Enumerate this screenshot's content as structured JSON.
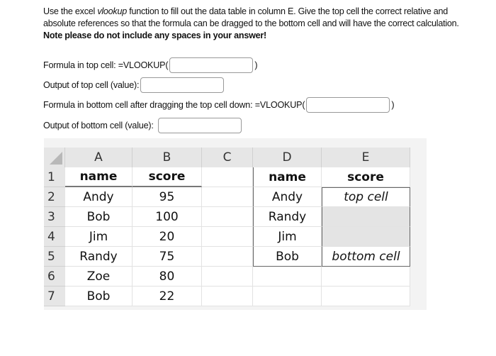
{
  "instructions": {
    "line1_a": "Use the excel ",
    "line1_em": "vlookup",
    "line1_b": " function to fill out the data table in column E. Give the top cell the correct relative and",
    "line2": "absolute references so that the formula can be dragged to the bottom cell and will have the correct calculation.",
    "note": "Note please do not include any spaces in your answer!"
  },
  "questions": [
    {
      "label": "Formula in top cell: =VLOOKUP(",
      "suffix": ")",
      "value": ""
    },
    {
      "label": "Output of top cell (value):",
      "suffix": "",
      "value": ""
    },
    {
      "label": "Formula in bottom cell after dragging the top cell down: =VLOOKUP(",
      "suffix": ")",
      "value": ""
    },
    {
      "label": "Output of bottom cell (value):",
      "suffix": "",
      "value": ""
    }
  ],
  "sheet": {
    "columns": [
      "A",
      "B",
      "C",
      "D",
      "E"
    ],
    "rows": [
      "1",
      "2",
      "3",
      "4",
      "5",
      "6",
      "7"
    ],
    "cells": [
      [
        "name",
        "score",
        "",
        "name",
        "score"
      ],
      [
        "Andy",
        "95",
        "",
        "Andy",
        "top cell"
      ],
      [
        "Bob",
        "100",
        "",
        "Randy",
        ""
      ],
      [
        "Jim",
        "20",
        "",
        "Jim",
        ""
      ],
      [
        "Randy",
        "75",
        "",
        "Bob",
        "bottom cell"
      ],
      [
        "Zoe",
        "80",
        "",
        "",
        ""
      ],
      [
        "Bob",
        "22",
        "",
        "",
        ""
      ]
    ],
    "highlight_color": "#e4e4e4"
  }
}
